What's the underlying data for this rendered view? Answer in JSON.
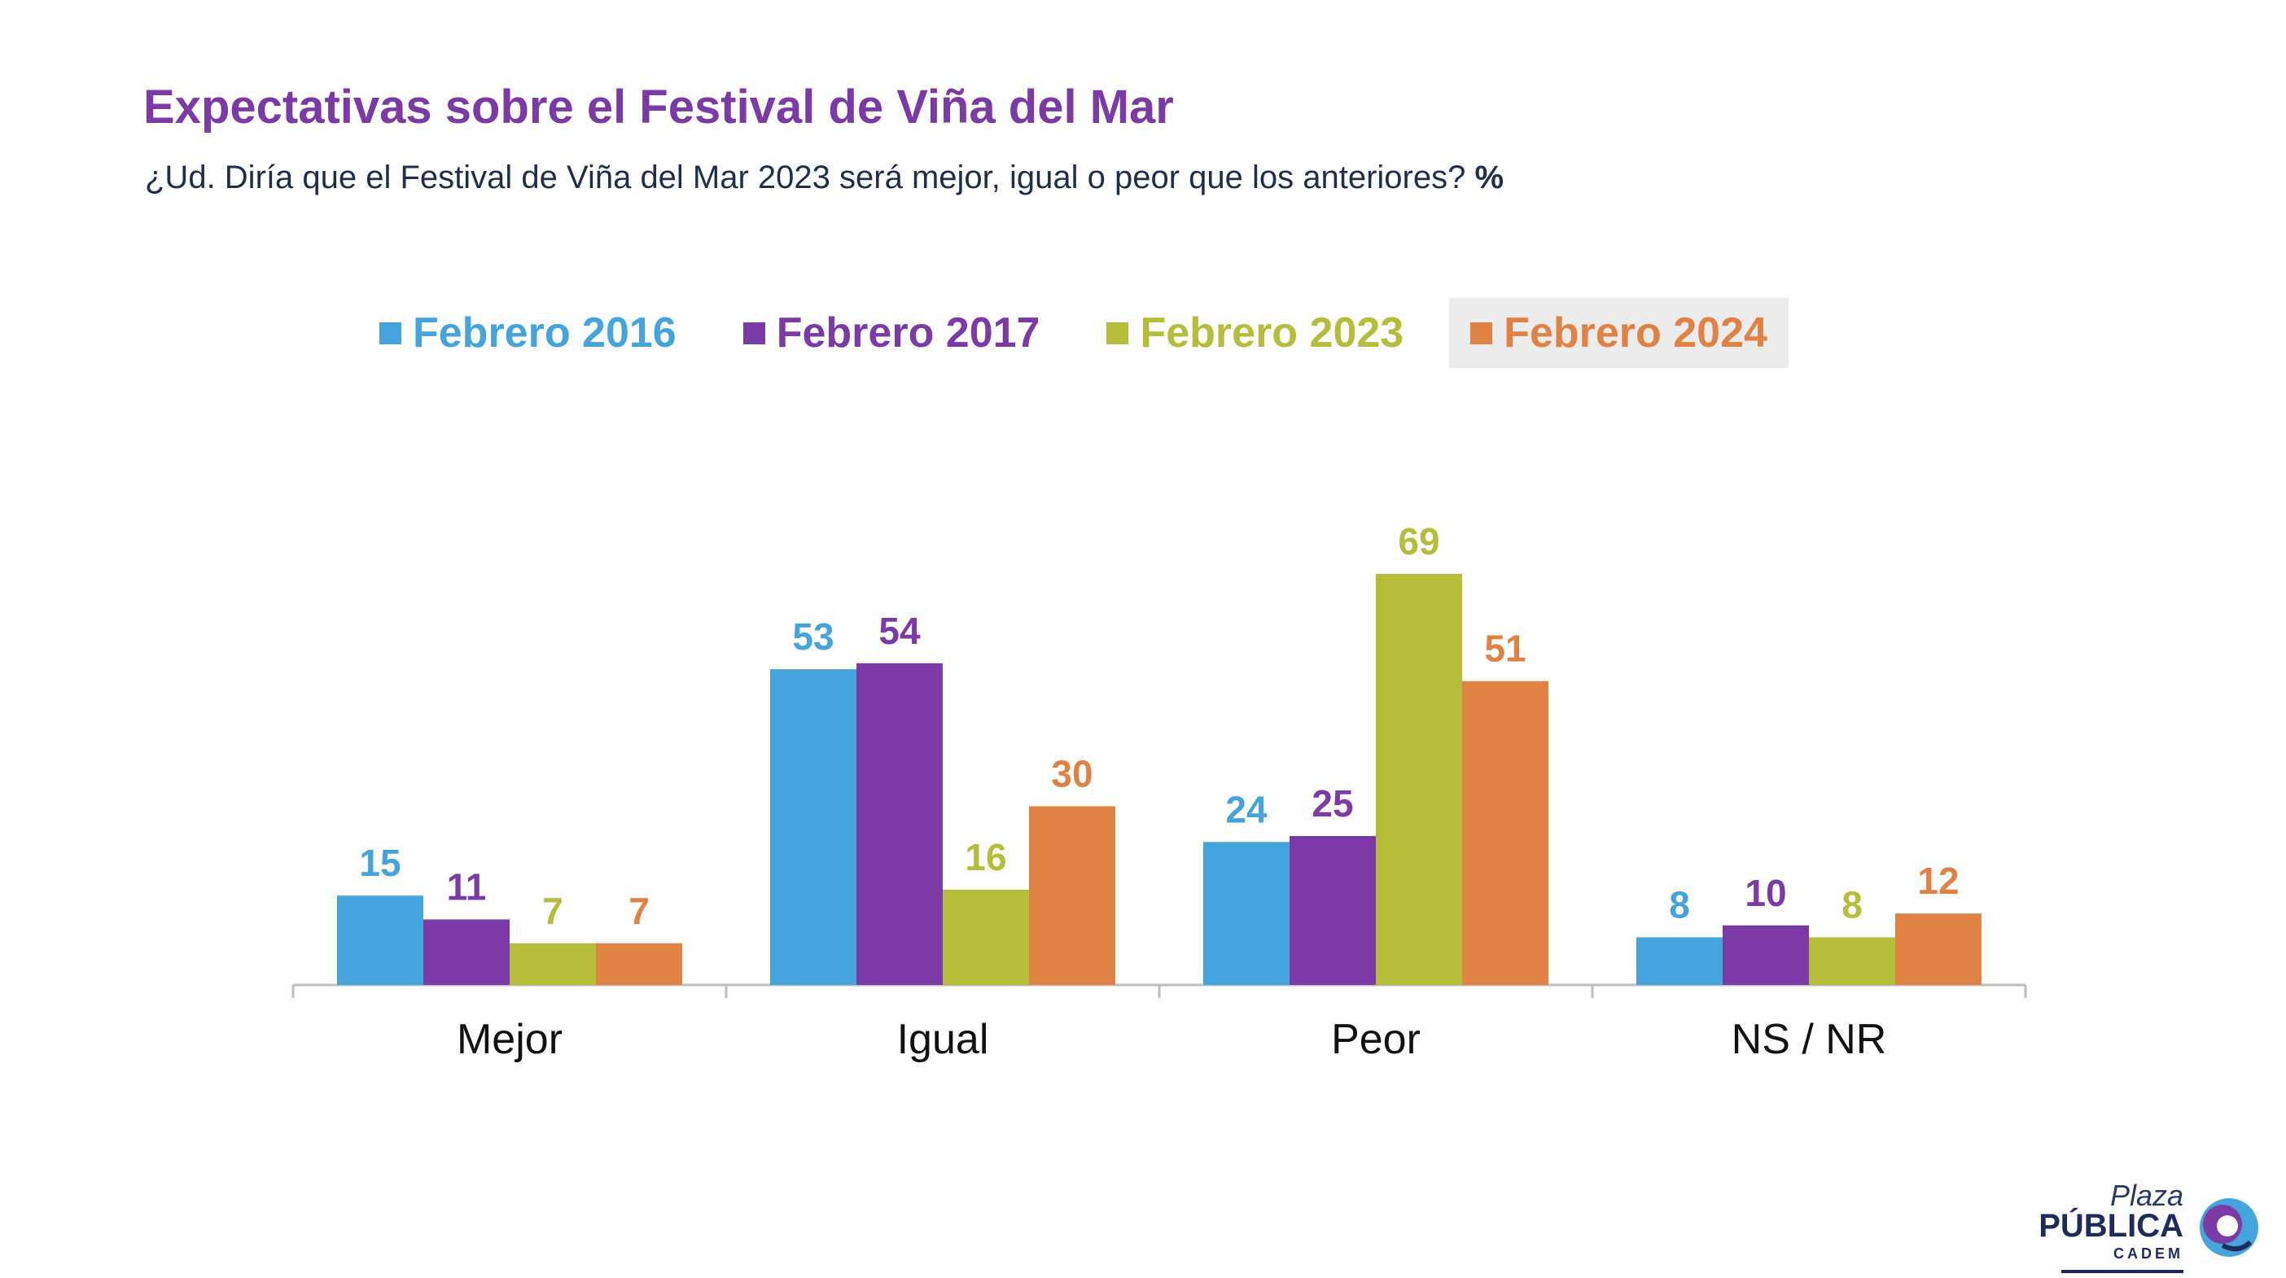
{
  "header": {
    "title": "Expectativas sobre el Festival de Viña del Mar",
    "subtitle": "¿Ud. Diría que el Festival de Viña del Mar 2023 será mejor, igual o peor que los anteriores?",
    "unit": "%"
  },
  "logo": {
    "line1": "Plaza",
    "line2": "PÚBLICA",
    "line3": "CADEM"
  },
  "colors": {
    "title": "#7b3aa6",
    "text": "#1f2f4a",
    "axis": "#bfbfbf"
  },
  "chart_data": {
    "type": "bar",
    "categories": [
      "Mejor",
      "Igual",
      "Peor",
      "NS / NR"
    ],
    "series": [
      {
        "name": "Febrero 2016",
        "color": "#45a4dc",
        "values": [
          15,
          53,
          24,
          8
        ]
      },
      {
        "name": "Febrero 2017",
        "color": "#7b3aa6",
        "values": [
          11,
          54,
          25,
          10
        ]
      },
      {
        "name": "Febrero 2023",
        "color": "#b5bd3b",
        "values": [
          7,
          16,
          69,
          8
        ]
      },
      {
        "name": "Febrero 2024",
        "color": "#e08244",
        "values": [
          7,
          30,
          51,
          12
        ]
      }
    ],
    "highlighted_series": "Febrero 2024",
    "ylim": [
      0,
      69
    ],
    "legend_position": "top",
    "grid": false,
    "data_labels": true
  }
}
